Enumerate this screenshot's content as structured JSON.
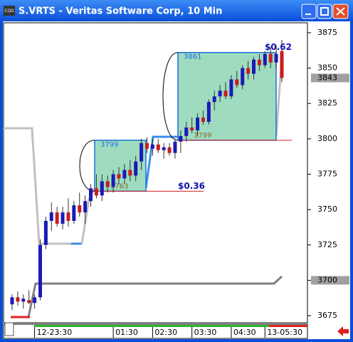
{
  "chart_data": {
    "type": "candlestick",
    "title": "S.VRTS - Veritas Software Corp, 10 Min",
    "app_icon": "CQG",
    "categories": [
      null,
      null,
      null,
      null,
      "12-23:30",
      null,
      null,
      null,
      null,
      null,
      null,
      null,
      null,
      null,
      null,
      null,
      null,
      null,
      "01:30",
      null,
      null,
      null,
      null,
      null,
      null,
      "02:30",
      null,
      null,
      null,
      null,
      null,
      null,
      "03:30",
      null,
      null,
      null,
      null,
      null,
      null,
      "04:30",
      null,
      null,
      null,
      null,
      null,
      "13-05:30",
      null,
      null,
      null
    ],
    "values": [
      [
        3683,
        3690,
        3679,
        3688
      ],
      [
        3688,
        3692,
        3682,
        3685
      ],
      [
        3685,
        3690,
        3680,
        3687
      ],
      [
        3686,
        3693,
        3683,
        3684
      ],
      [
        3684,
        3690,
        3680,
        3688
      ],
      [
        3688,
        3729,
        3686,
        3725
      ],
      [
        3725,
        3745,
        3722,
        3742
      ],
      [
        3742,
        3755,
        3735,
        3748
      ],
      [
        3748,
        3752,
        3738,
        3740
      ],
      [
        3740,
        3752,
        3736,
        3748
      ],
      [
        3748,
        3758,
        3738,
        3742
      ],
      [
        3742,
        3756,
        3740,
        3753
      ],
      [
        3753,
        3762,
        3745,
        3748
      ],
      [
        3748,
        3760,
        3740,
        3756
      ],
      [
        3756,
        3768,
        3752,
        3765
      ],
      [
        3765,
        3775,
        3758,
        3760
      ],
      [
        3760,
        3775,
        3756,
        3770
      ],
      [
        3770,
        3774,
        3762,
        3766
      ],
      [
        3766,
        3778,
        3762,
        3775
      ],
      [
        3775,
        3780,
        3768,
        3772
      ],
      [
        3772,
        3782,
        3768,
        3778
      ],
      [
        3778,
        3785,
        3770,
        3774
      ],
      [
        3774,
        3788,
        3770,
        3784
      ],
      [
        3784,
        3800,
        3778,
        3797
      ],
      [
        3797,
        3801,
        3790,
        3793
      ],
      [
        3793,
        3800,
        3788,
        3796
      ],
      [
        3796,
        3800,
        3790,
        3792
      ],
      [
        3792,
        3797,
        3786,
        3794
      ],
      [
        3794,
        3797,
        3788,
        3790
      ],
      [
        3790,
        3800,
        3786,
        3798
      ],
      [
        3798,
        3806,
        3790,
        3802
      ],
      [
        3802,
        3812,
        3798,
        3808
      ],
      [
        3808,
        3815,
        3804,
        3806
      ],
      [
        3806,
        3818,
        3802,
        3815
      ],
      [
        3815,
        3820,
        3810,
        3812
      ],
      [
        3812,
        3828,
        3810,
        3826
      ],
      [
        3826,
        3834,
        3820,
        3830
      ],
      [
        3830,
        3838,
        3826,
        3834
      ],
      [
        3834,
        3840,
        3828,
        3830
      ],
      [
        3830,
        3845,
        3828,
        3842
      ],
      [
        3842,
        3848,
        3836,
        3838
      ],
      [
        3838,
        3852,
        3835,
        3850
      ],
      [
        3850,
        3855,
        3842,
        3846
      ],
      [
        3846,
        3858,
        3842,
        3856
      ],
      [
        3856,
        3860,
        3848,
        3852
      ],
      [
        3852,
        3862,
        3850,
        3860
      ],
      [
        3860,
        3865,
        3850,
        3854
      ],
      [
        3854,
        3866,
        3850,
        3860
      ],
      [
        3862,
        3870,
        3840,
        3843
      ]
    ],
    "up_color": "#1a1ab8",
    "down_color": "#c81e1e",
    "ylim": [
      3670,
      3882
    ],
    "yticks": [
      3675,
      3700,
      3725,
      3750,
      3775,
      3800,
      3825,
      3850,
      3875
    ],
    "price_tags": [
      3843,
      3700
    ],
    "boxes": [
      {
        "low": 3763,
        "high": 3799,
        "change": "$0.36"
      },
      {
        "low": 3799,
        "high": 3861,
        "change": "$0.62"
      }
    ]
  }
}
